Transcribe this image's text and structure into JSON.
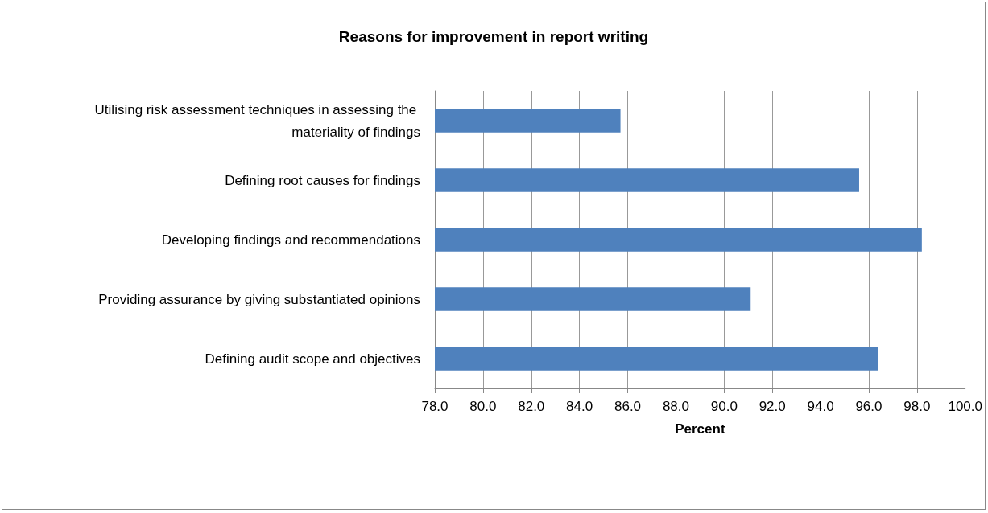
{
  "chart_data": {
    "type": "bar",
    "orientation": "horizontal",
    "title": "Reasons for improvement in report writing",
    "xlabel": "Percent",
    "categories": [
      "Utilising risk assessment techniques in assessing the materiality of findings",
      "Defining root causes for findings",
      "Developing findings and recommendations",
      "Providing assurance by giving substantiated opinions",
      "Defining audit scope and objectives"
    ],
    "values": [
      85.7,
      95.6,
      98.2,
      91.1,
      96.4
    ],
    "color": "#4f81bd",
    "xlim": [
      78,
      100
    ],
    "xticks": [
      {
        "value": 78,
        "label": "78.0"
      },
      {
        "value": 80,
        "label": "80.0"
      },
      {
        "value": 82,
        "label": "82.0"
      },
      {
        "value": 84,
        "label": "84.0"
      },
      {
        "value": 86,
        "label": "86.0"
      },
      {
        "value": 88,
        "label": "88.0"
      },
      {
        "value": 90,
        "label": "90.0"
      },
      {
        "value": 92,
        "label": "92.0"
      },
      {
        "value": 94,
        "label": "94.0"
      },
      {
        "value": 96,
        "label": "96.0"
      },
      {
        "value": 98,
        "label": "98.0"
      },
      {
        "value": 100,
        "label": "100.0"
      }
    ],
    "grid": "x"
  }
}
